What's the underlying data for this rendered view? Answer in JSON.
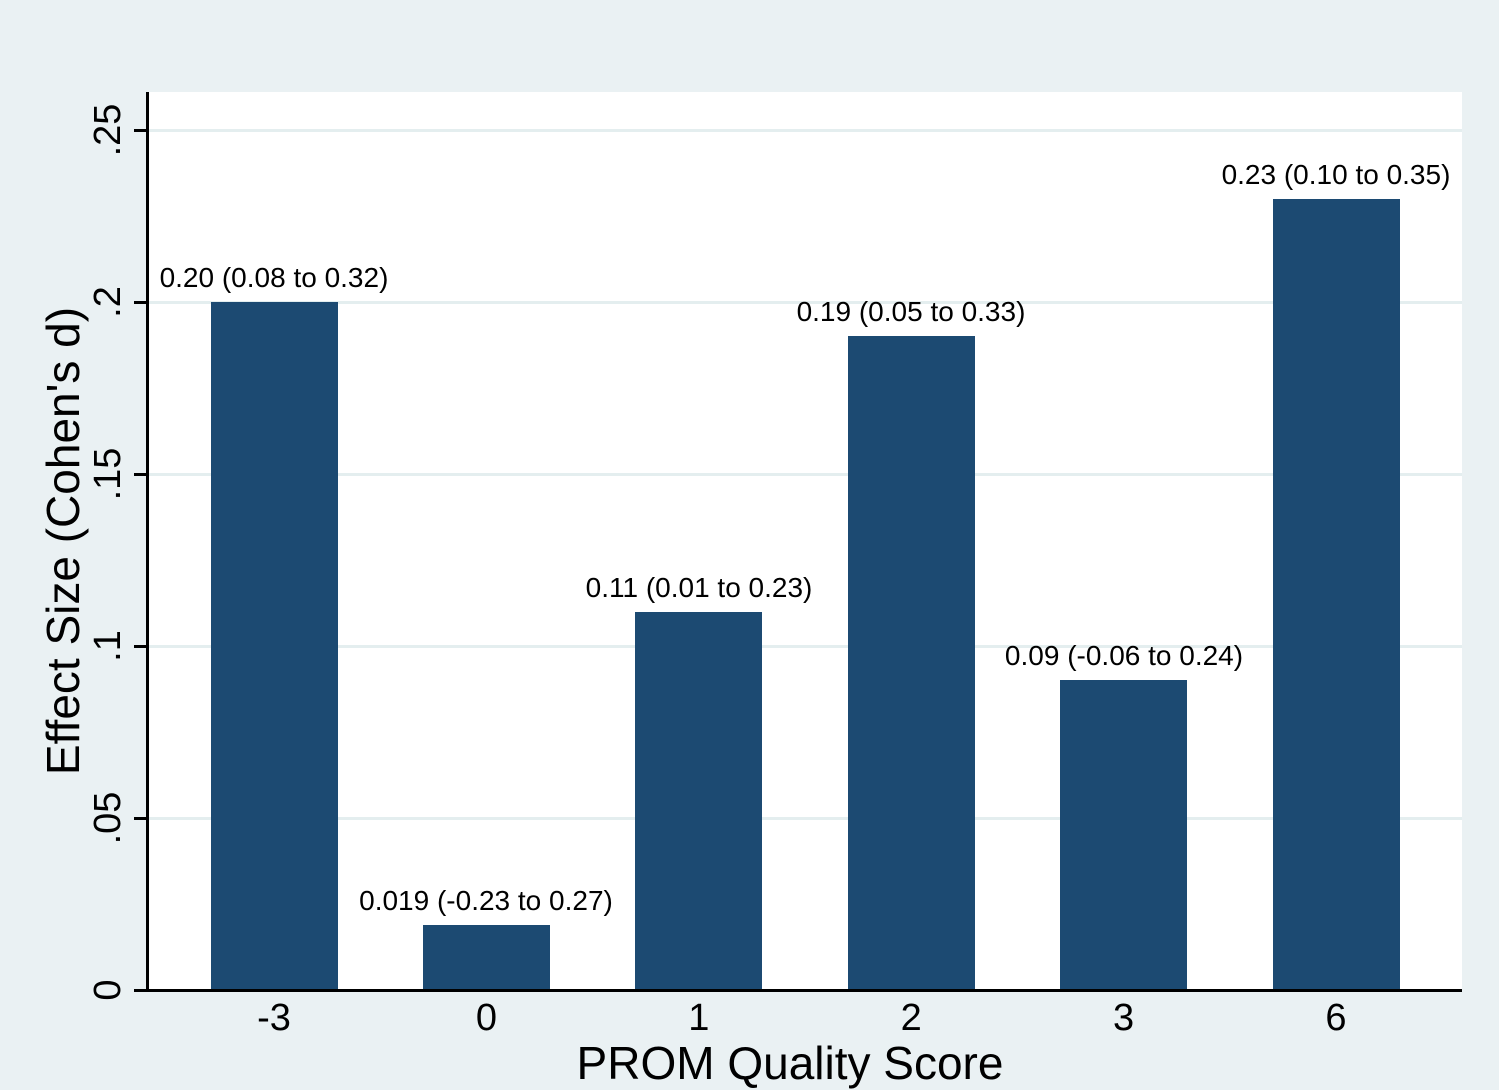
{
  "figure": {
    "background_color": "#eaf1f3",
    "plot_background_color": "#ffffff",
    "bar_color": "#1c4a72",
    "gridline_color": "#e4eeef",
    "axis_color": "#000000",
    "text_color": "#000000"
  },
  "chart_data": {
    "type": "bar",
    "title": "",
    "xlabel": "PROM Quality Score",
    "ylabel": "Effect Size (Cohen's d)",
    "categories": [
      "-3",
      "0",
      "1",
      "2",
      "3",
      "6"
    ],
    "values": [
      0.2,
      0.019,
      0.11,
      0.19,
      0.09,
      0.23
    ],
    "bar_labels": [
      "0.20 (0.08 to 0.32)",
      "0.019 (-0.23 to 0.27)",
      "0.11 (0.01 to 0.23)",
      "0.19 (0.05 to 0.33)",
      "0.09 (-0.06 to 0.24)",
      "0.23 (0.10 to 0.35)"
    ],
    "ci_low": [
      0.08,
      -0.23,
      0.01,
      0.05,
      -0.06,
      0.1
    ],
    "ci_high": [
      0.32,
      0.27,
      0.23,
      0.33,
      0.24,
      0.35
    ],
    "y_tick_labels": [
      "0",
      ".05",
      ".1",
      ".15",
      ".2",
      ".25"
    ],
    "y_tick_values": [
      0,
      0.05,
      0.1,
      0.15,
      0.2,
      0.25
    ],
    "ylim": [
      0,
      0.261
    ],
    "grid": true,
    "legend_position": "none"
  }
}
